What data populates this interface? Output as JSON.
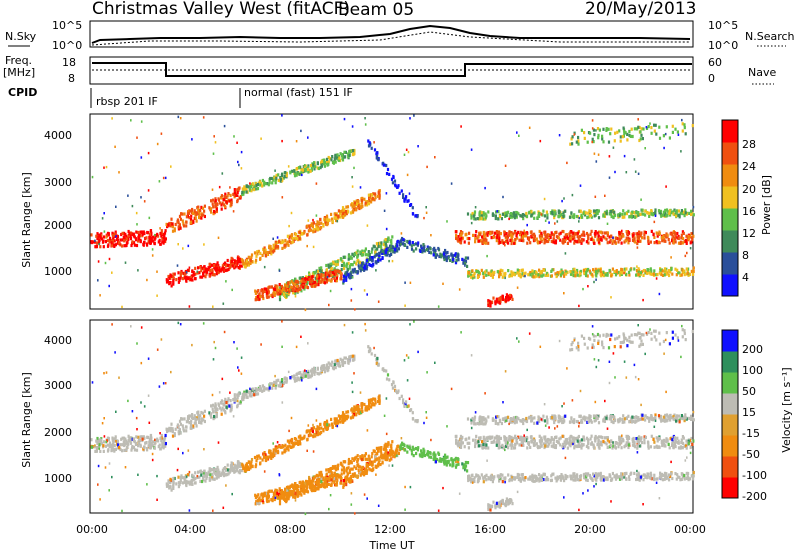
{
  "header": {
    "station": "Christmas Valley West (fitACF)",
    "beam": "Beam 05",
    "date": "20/May/2013"
  },
  "noise_panel": {
    "left_label": "N.Sky",
    "right_label": "N.Search",
    "left_ticks": [
      "10^5",
      "10^0"
    ],
    "right_ticks": [
      "10^5",
      "10^0"
    ]
  },
  "freq_panel": {
    "left_label_1": "Freq.",
    "left_label_2": "[MHz]",
    "right_label": "Nave",
    "left_ticks": [
      "18",
      "8"
    ],
    "right_ticks": [
      "60",
      "0"
    ]
  },
  "cpid": {
    "label": "CPID",
    "modes": [
      "rbsp 201 IF",
      "normal (fast) 151 IF"
    ]
  },
  "colors": {
    "power_scale": [
      "#1010ff",
      "#2a4f9a",
      "#3f8a5a",
      "#5fbf4a",
      "#f0c020",
      "#f08c10",
      "#f05010",
      "#ff0000"
    ],
    "velocity_scale": [
      "#ff0000",
      "#f05010",
      "#f08c10",
      "#e0a030",
      "#bdbcb4",
      "#5fbf4a",
      "#2e8f5c",
      "#1010ff"
    ]
  },
  "chart_data": [
    {
      "type": "heatmap",
      "name_panel": "power",
      "ylabel": "Slant Range [km]",
      "yticks": [
        "1000",
        "2000",
        "3000",
        "4000"
      ],
      "ylim": [
        500,
        4500
      ],
      "xlim": [
        0,
        24
      ],
      "colorbar_label": "Power [dB]",
      "colorbar_ticks": [
        "28",
        "24",
        "20",
        "16",
        "12",
        "8",
        "4"
      ],
      "colorbar_range": [
        0,
        30
      ]
    },
    {
      "type": "heatmap",
      "name_panel": "velocity",
      "ylabel": "Slant Range [km]",
      "yticks": [
        "1000",
        "2000",
        "3000",
        "4000"
      ],
      "ylim": [
        500,
        4500
      ],
      "xlim": [
        0,
        24
      ],
      "xticks": [
        "00:00",
        "04:00",
        "08:00",
        "12:00",
        "16:00",
        "20:00",
        "00:00"
      ],
      "xlabel": "Time UT",
      "colorbar_label": "Velocity [m s⁻¹]",
      "colorbar_ticks": [
        "200",
        "100",
        "50",
        "15",
        "-15",
        "-50",
        "-100",
        "-200"
      ]
    }
  ]
}
